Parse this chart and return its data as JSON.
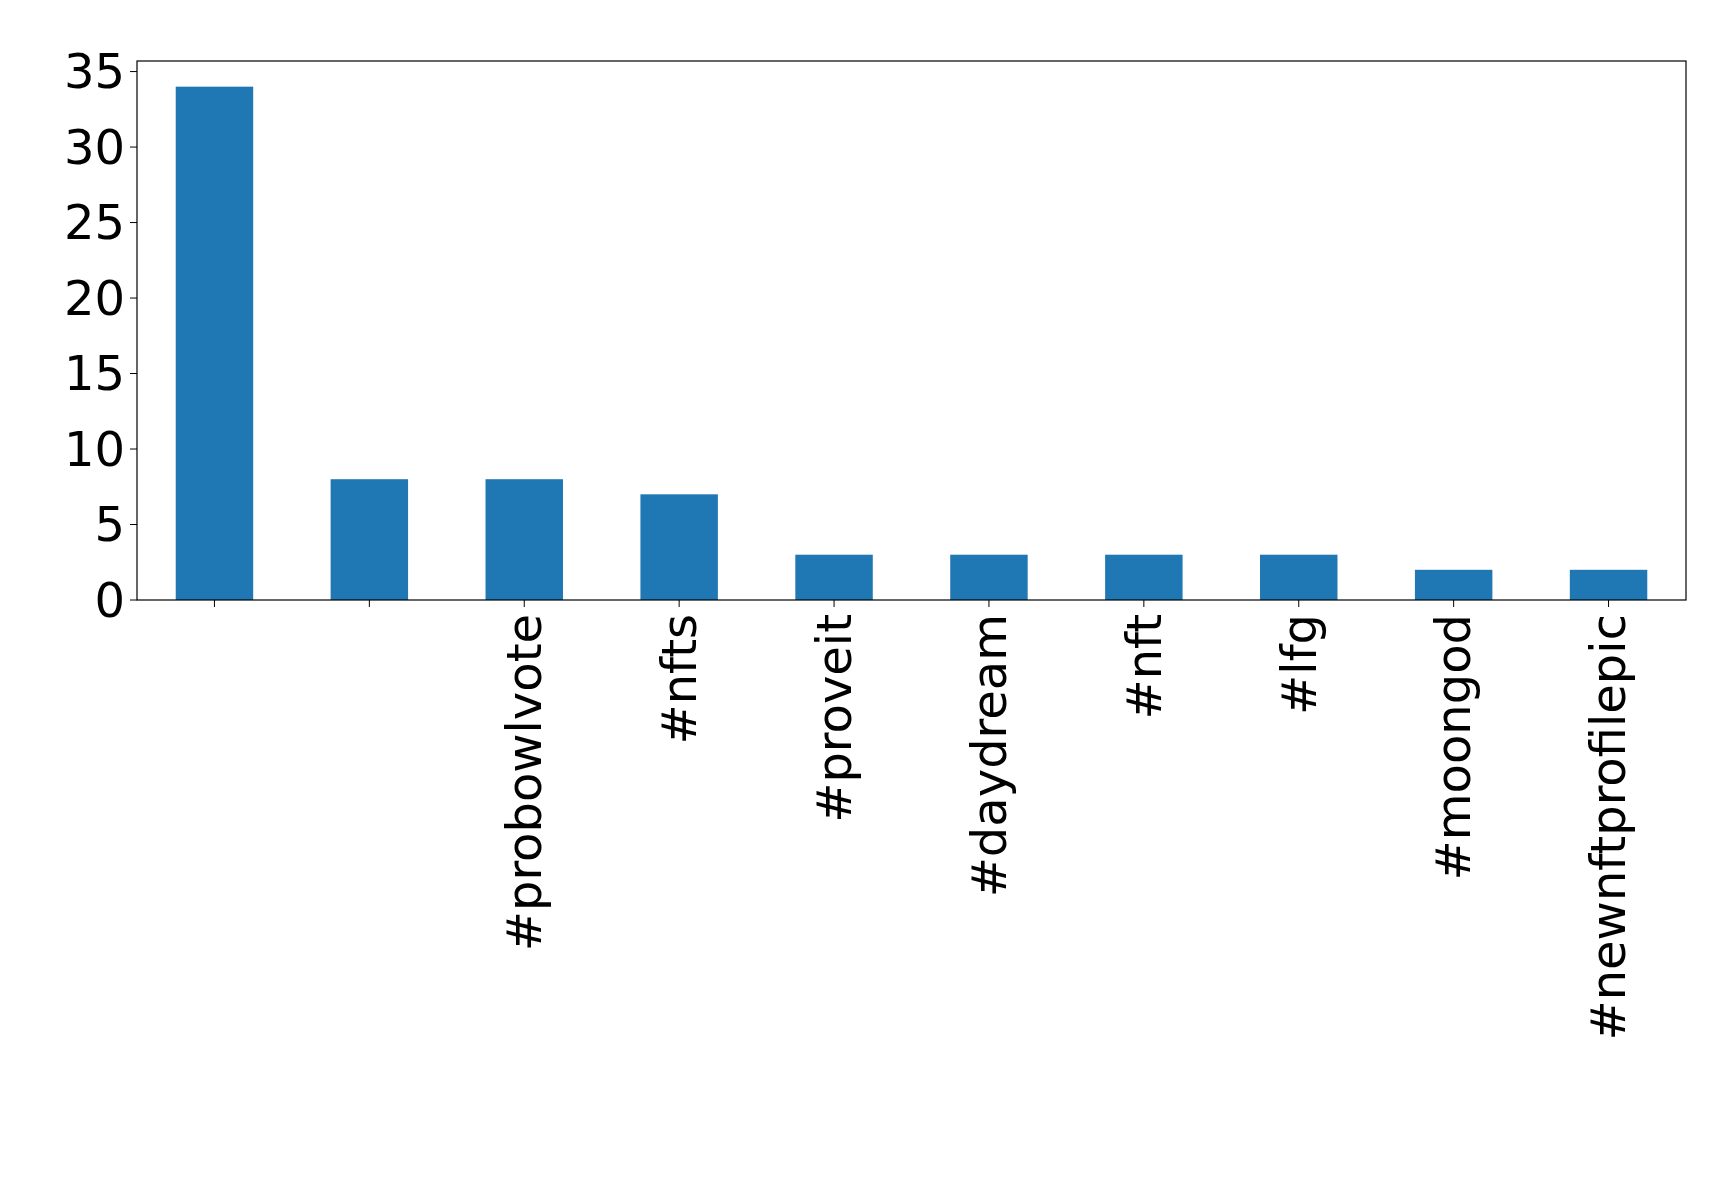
{
  "chart_data": {
    "type": "bar",
    "categories": [
      null,
      null,
      "#probowlvote",
      "#nfts",
      "#proveit",
      "#daydream",
      "#nft",
      "#lfg",
      "#moongod",
      "#newnftprofilepic"
    ],
    "values": [
      34,
      8,
      8,
      7,
      3,
      3,
      3,
      3,
      2,
      2
    ],
    "color": "#1f77b4",
    "ylim": [
      0,
      35.7
    ],
    "yticks": [
      0,
      5,
      10,
      15,
      20,
      25,
      30,
      35
    ],
    "grid": false
  }
}
